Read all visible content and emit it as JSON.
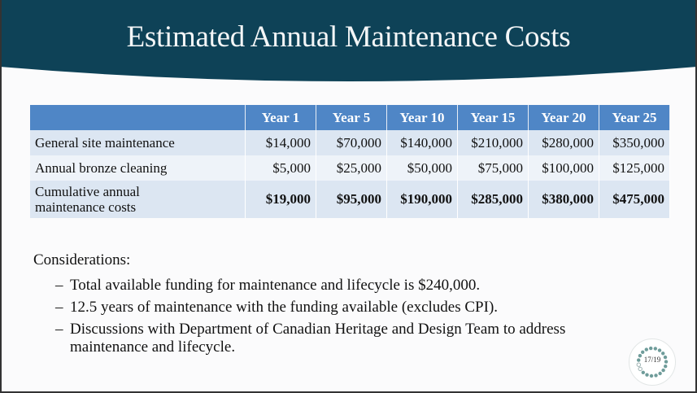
{
  "slide": {
    "title": "Estimated Annual Maintenance Costs",
    "header_color": "#0e4257",
    "table": {
      "columns": [
        "",
        "Year 1",
        "Year 5",
        "Year 10",
        "Year 15",
        "Year 20",
        "Year 25"
      ],
      "rows": [
        {
          "label": "General site maintenance",
          "values": [
            "$14,000",
            "$70,000",
            "$140,000",
            "$210,000",
            "$280,000",
            "$350,000"
          ]
        },
        {
          "label": "Annual bronze cleaning",
          "values": [
            "$5,000",
            "$25,000",
            "$50,000",
            "$75,000",
            "$100,000",
            "$125,000"
          ]
        },
        {
          "label": "Cumulative annual maintenance costs",
          "values": [
            "$19,000",
            "$95,000",
            "$190,000",
            "$285,000",
            "$380,000",
            "$475,000"
          ]
        }
      ]
    },
    "considerations_heading": "Considerations:",
    "bullets": [
      "Total available funding for maintenance and lifecycle is $240,000.",
      "12.5 years of maintenance with the funding available (excludes CPI).",
      "Discussions with Department of Canadian Heritage and  Design Team to address  maintenance and lifecycle."
    ],
    "bullet_marker": "–",
    "page_indicator": "17/19",
    "page_current": 17,
    "page_total": 19
  }
}
